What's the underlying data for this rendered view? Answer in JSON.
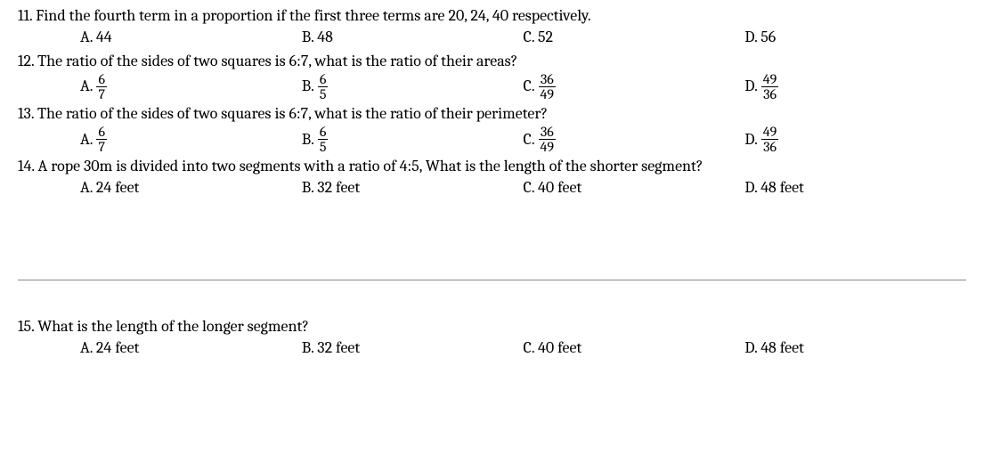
{
  "q11": {
    "text": "11. Find the fourth term in a  proportion if the first three terms are 20, 24, 40 respectively.",
    "options": {
      "a": "A. 44",
      "b": "B. 48",
      "c": "C. 52",
      "d": "D. 56"
    }
  },
  "q12": {
    "text": "12. The ratio of the sides of two squares is 6:7,  what is the ratio of their areas?",
    "labels": {
      "a": "A.",
      "b": "B.",
      "c": "C.",
      "d": "D."
    },
    "fracs": {
      "a_num": "6",
      "a_den": "7",
      "b_num": "6",
      "b_den": "5",
      "c_num": "36",
      "c_den": "49",
      "d_num": "49",
      "d_den": "36"
    }
  },
  "q13": {
    "text": "13. The ratio of the sides of two squares is 6:7,  what is the ratio of their perimeter?",
    "labels": {
      "a": "A.",
      "b": "B.",
      "c": "C.",
      "d": "D."
    },
    "fracs": {
      "a_num": "6",
      "a_den": "7",
      "b_num": "6",
      "b_den": "5",
      "c_num": "36",
      "c_den": "49",
      "d_num": "49",
      "d_den": "36"
    }
  },
  "q14": {
    "text": "14. A rope  30m is divided into two segments with a ratio of 4:5, What is the length of the shorter segment?",
    "options": {
      "a": "A.  24 feet",
      "b": "B. 32 feet",
      "c": "C. 40 feet",
      "d": "D. 48 feet"
    }
  },
  "q15": {
    "text": "15. What is the length of the longer segment?",
    "options": {
      "a": "A.  24 feet",
      "b": "B. 32 feet",
      "c": "C. 40 feet",
      "d": "D. 48 feet"
    }
  }
}
